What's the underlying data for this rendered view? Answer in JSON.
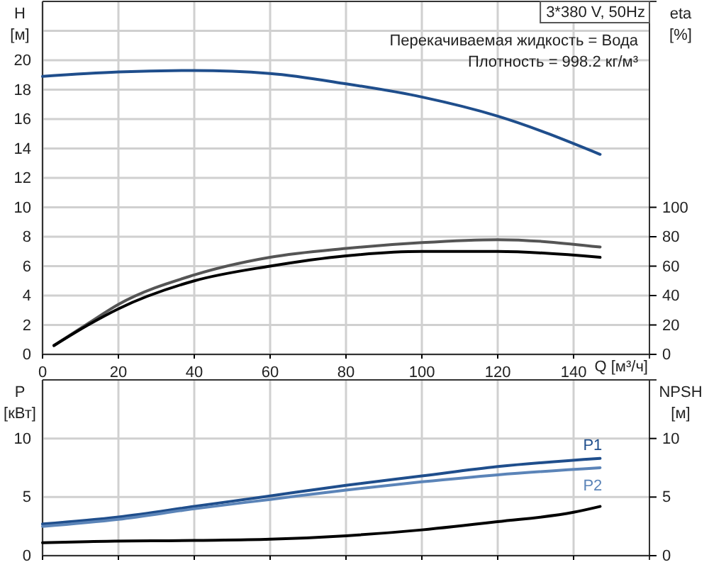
{
  "chart_data": [
    {
      "type": "line",
      "title": "3*380 V, 50Hz",
      "annotations": [
        "Перекачиваемая жидкость = Вода",
        "Плотность = 998.2 кг/м³"
      ],
      "xlabel": "Q [м³/ч]",
      "ylabel": "H\n[м]",
      "y2label": "eta\n[%]",
      "grid": true,
      "xlim": [
        0,
        160
      ],
      "xticks": [
        0,
        20,
        40,
        60,
        80,
        100,
        120,
        140
      ],
      "ylim": [
        0,
        24
      ],
      "yticks": [
        0,
        2,
        4,
        6,
        8,
        10,
        12,
        14,
        16,
        18,
        20,
        {
          "value": 22,
          "label": null
        }
      ],
      "y2lim": [
        0,
        240
      ],
      "y2ticks": [
        0,
        20,
        40,
        60,
        80,
        100
      ],
      "series": [
        {
          "color": "#1f4e8c",
          "x": [
            0,
            20,
            40,
            60,
            80,
            100,
            120,
            147
          ],
          "values": [
            18.9,
            19.2,
            19.3,
            19.1,
            18.4,
            17.5,
            16.2,
            13.6
          ]
        },
        {
          "color": "#555555",
          "axis": "y2",
          "x": [
            3,
            12,
            20,
            40,
            60,
            80,
            100,
            120,
            147
          ],
          "values": [
            6,
            21,
            34,
            54,
            66,
            72,
            76,
            78,
            73
          ]
        },
        {
          "color": "#000000",
          "axis": "y2",
          "x": [
            3,
            12,
            20,
            40,
            60,
            80,
            100,
            120,
            147
          ],
          "values": [
            6,
            20,
            31,
            50,
            60,
            67,
            70,
            70,
            66
          ]
        }
      ]
    },
    {
      "type": "line",
      "ylabel": "P\n[кВт]",
      "y2label": "NPSH\n[м]",
      "grid": true,
      "tick_labels": "y",
      "xlim": [
        0,
        160
      ],
      "xticks": [
        0,
        20,
        40,
        60,
        80,
        100,
        120,
        140
      ],
      "ylim": [
        0,
        15
      ],
      "yticks": [
        0,
        5,
        10
      ],
      "y2lim": [
        0,
        15
      ],
      "y2ticks": [
        0,
        5,
        10
      ],
      "series": [
        {
          "name": "P1",
          "color": "#1f4e8c",
          "x": [
            0,
            20,
            40,
            60,
            80,
            100,
            120,
            147
          ],
          "values": [
            2.7,
            3.3,
            4.2,
            5.1,
            6.0,
            6.8,
            7.6,
            8.3
          ]
        },
        {
          "name": "P2",
          "color": "#5b84b8",
          "x": [
            0,
            20,
            40,
            60,
            80,
            100,
            120,
            147
          ],
          "values": [
            2.5,
            3.1,
            4.0,
            4.8,
            5.6,
            6.3,
            6.9,
            7.5
          ]
        },
        {
          "color": "#000000",
          "axis": "y2",
          "x": [
            0,
            12,
            40,
            60,
            80,
            100,
            120,
            140,
            147
          ],
          "values": [
            1.1,
            1.2,
            1.3,
            1.4,
            1.7,
            2.2,
            2.9,
            3.7,
            4.2
          ]
        }
      ]
    }
  ]
}
